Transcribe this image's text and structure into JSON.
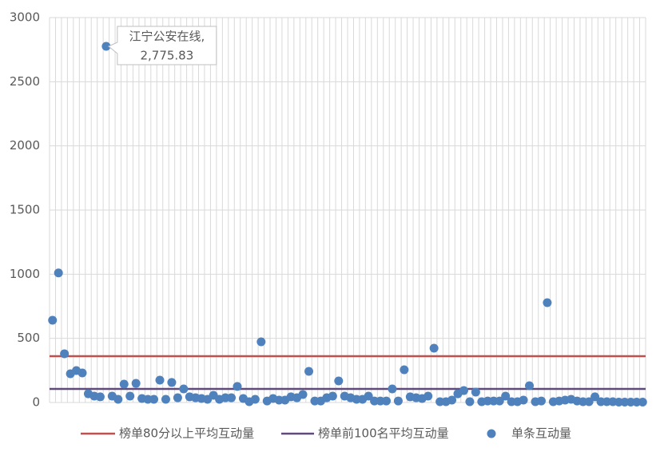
{
  "chart_data": {
    "type": "scatter",
    "categories": [
      null,
      null,
      null,
      null,
      null,
      null,
      null,
      null,
      null,
      null,
      null,
      null,
      null,
      null,
      null,
      null,
      null,
      null,
      null,
      null,
      null,
      null,
      null,
      null,
      null,
      null,
      null,
      null,
      null,
      null,
      null,
      null,
      null,
      null,
      null,
      null,
      null,
      null,
      null,
      null,
      null,
      null,
      null,
      null,
      null,
      null,
      null,
      null,
      null,
      null,
      null,
      null,
      null,
      null,
      null,
      null,
      null,
      null,
      null,
      null,
      null,
      null,
      null,
      null,
      null,
      null,
      null,
      null,
      null,
      null,
      null,
      null,
      null,
      null,
      null,
      null,
      null,
      null,
      null,
      null,
      null,
      null,
      null,
      null,
      null,
      null,
      null,
      null,
      null,
      null,
      null,
      null,
      null,
      null,
      null,
      null,
      null,
      null,
      null,
      null
    ],
    "series": [
      {
        "name": "单条互动量",
        "color": "#4f81bd",
        "values": [
          641,
          1010,
          380,
          224,
          249,
          230,
          68,
          50,
          44,
          2775.83,
          50,
          25,
          143,
          50,
          149,
          31,
          25,
          25,
          174,
          25,
          156,
          37,
          106,
          44,
          37,
          31,
          25,
          56,
          25,
          37,
          37,
          125,
          31,
          6,
          25,
          473,
          12,
          31,
          19,
          19,
          44,
          37,
          62,
          243,
          12,
          12,
          37,
          50,
          168,
          50,
          37,
          25,
          25,
          50,
          12,
          12,
          12,
          106,
          12,
          255,
          44,
          37,
          31,
          50,
          423,
          6,
          6,
          19,
          68,
          93,
          6,
          81,
          6,
          12,
          12,
          12,
          50,
          6,
          6,
          19,
          131,
          6,
          12,
          778,
          6,
          12,
          19,
          25,
          12,
          6,
          6,
          44,
          6,
          6,
          6,
          3,
          3,
          3,
          3,
          3
        ],
        "value_labels": [
          null,
          null,
          null,
          null,
          null,
          null,
          null,
          null,
          null,
          "2,775.83",
          null,
          null,
          null,
          null,
          null,
          null,
          null,
          null,
          null,
          null,
          null,
          null,
          null,
          null,
          null,
          null,
          null,
          null,
          null,
          null,
          null,
          null,
          null,
          null,
          null,
          null,
          null,
          null,
          null,
          null,
          null,
          null,
          null,
          null,
          null,
          null,
          null,
          null,
          null,
          null,
          null,
          null,
          null,
          null,
          null,
          null,
          null,
          null,
          null,
          null,
          null,
          null,
          null,
          null,
          null,
          null,
          null,
          null,
          null,
          null,
          null,
          null,
          null,
          null,
          null,
          null,
          null,
          null,
          null,
          null,
          null,
          null,
          null,
          null,
          null,
          null,
          null,
          null,
          null,
          null,
          null,
          null,
          null,
          null,
          null,
          null,
          null,
          null,
          null,
          null
        ],
        "point_labels": [
          null,
          null,
          null,
          null,
          null,
          null,
          null,
          null,
          null,
          "江宁公安在线,",
          null,
          null,
          null,
          null,
          null,
          null,
          null,
          null,
          null,
          null,
          null,
          null,
          null,
          null,
          null,
          null,
          null,
          null,
          null,
          null,
          null,
          null,
          null,
          null,
          null,
          null,
          null,
          null,
          null,
          null,
          null,
          null,
          null,
          null,
          null,
          null,
          null,
          null,
          null,
          null,
          null,
          null,
          null,
          null,
          null,
          null,
          null,
          null,
          null,
          null,
          null,
          null,
          null,
          null,
          null,
          null,
          null,
          null,
          null,
          null,
          null,
          null,
          null,
          null,
          null,
          null,
          null,
          null,
          null,
          null,
          null,
          null,
          null,
          null,
          null,
          null,
          null,
          null,
          null,
          null,
          null,
          null,
          null,
          null,
          null,
          null,
          null,
          null,
          null,
          null
        ]
      }
    ],
    "reference_lines": [
      {
        "name": "榜单80分以上平均互动量",
        "color": "#c0504d",
        "value": 361
      },
      {
        "name": "榜单前100名平均互动量",
        "color": "#604a7b",
        "value": 106
      }
    ],
    "ylim": [
      0,
      3000
    ],
    "yticks": [
      0,
      500,
      1000,
      1500,
      2000,
      2500,
      3000
    ],
    "grid": true
  }
}
